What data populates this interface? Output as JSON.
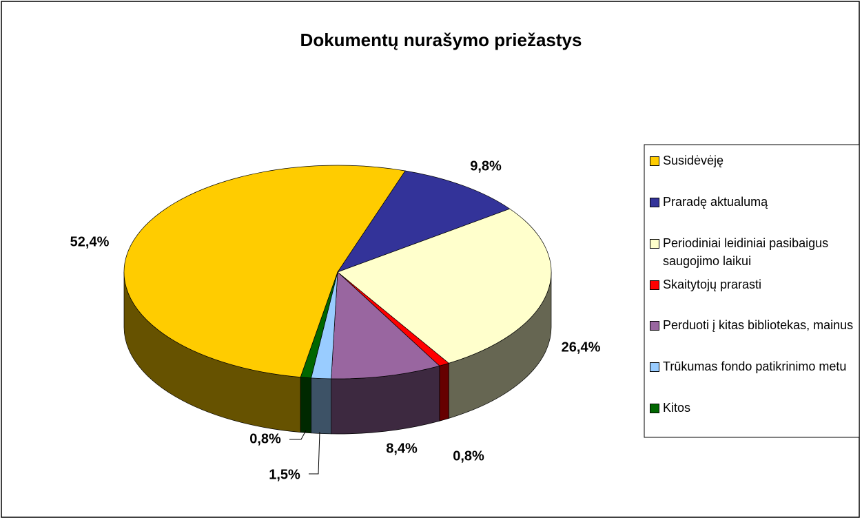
{
  "chart_data": {
    "type": "pie",
    "title": "Dokumentų nurašymo priežastys",
    "categories": [
      "Susidėvėję",
      "Praradę aktualumą",
      "Periodiniai leidiniai pasibaigus saugojimo laikui",
      "Skaitytojų prarasti",
      "Perduoti į kitas bibliotekas, mainus",
      "Trūkumas fondo patikrinimo metu",
      "Kitos"
    ],
    "values": [
      52.4,
      9.8,
      26.4,
      0.8,
      8.4,
      1.5,
      0.8
    ],
    "value_labels": [
      "52,4%",
      "9,8%",
      "26,4%",
      "0,8%",
      "8,4%",
      "1,5%",
      "0,8%"
    ],
    "colors": [
      "#FFCC00",
      "#333399",
      "#FFFFCC",
      "#FF0000",
      "#9966A0",
      "#99CCFF",
      "#006600"
    ],
    "legend": "right"
  }
}
